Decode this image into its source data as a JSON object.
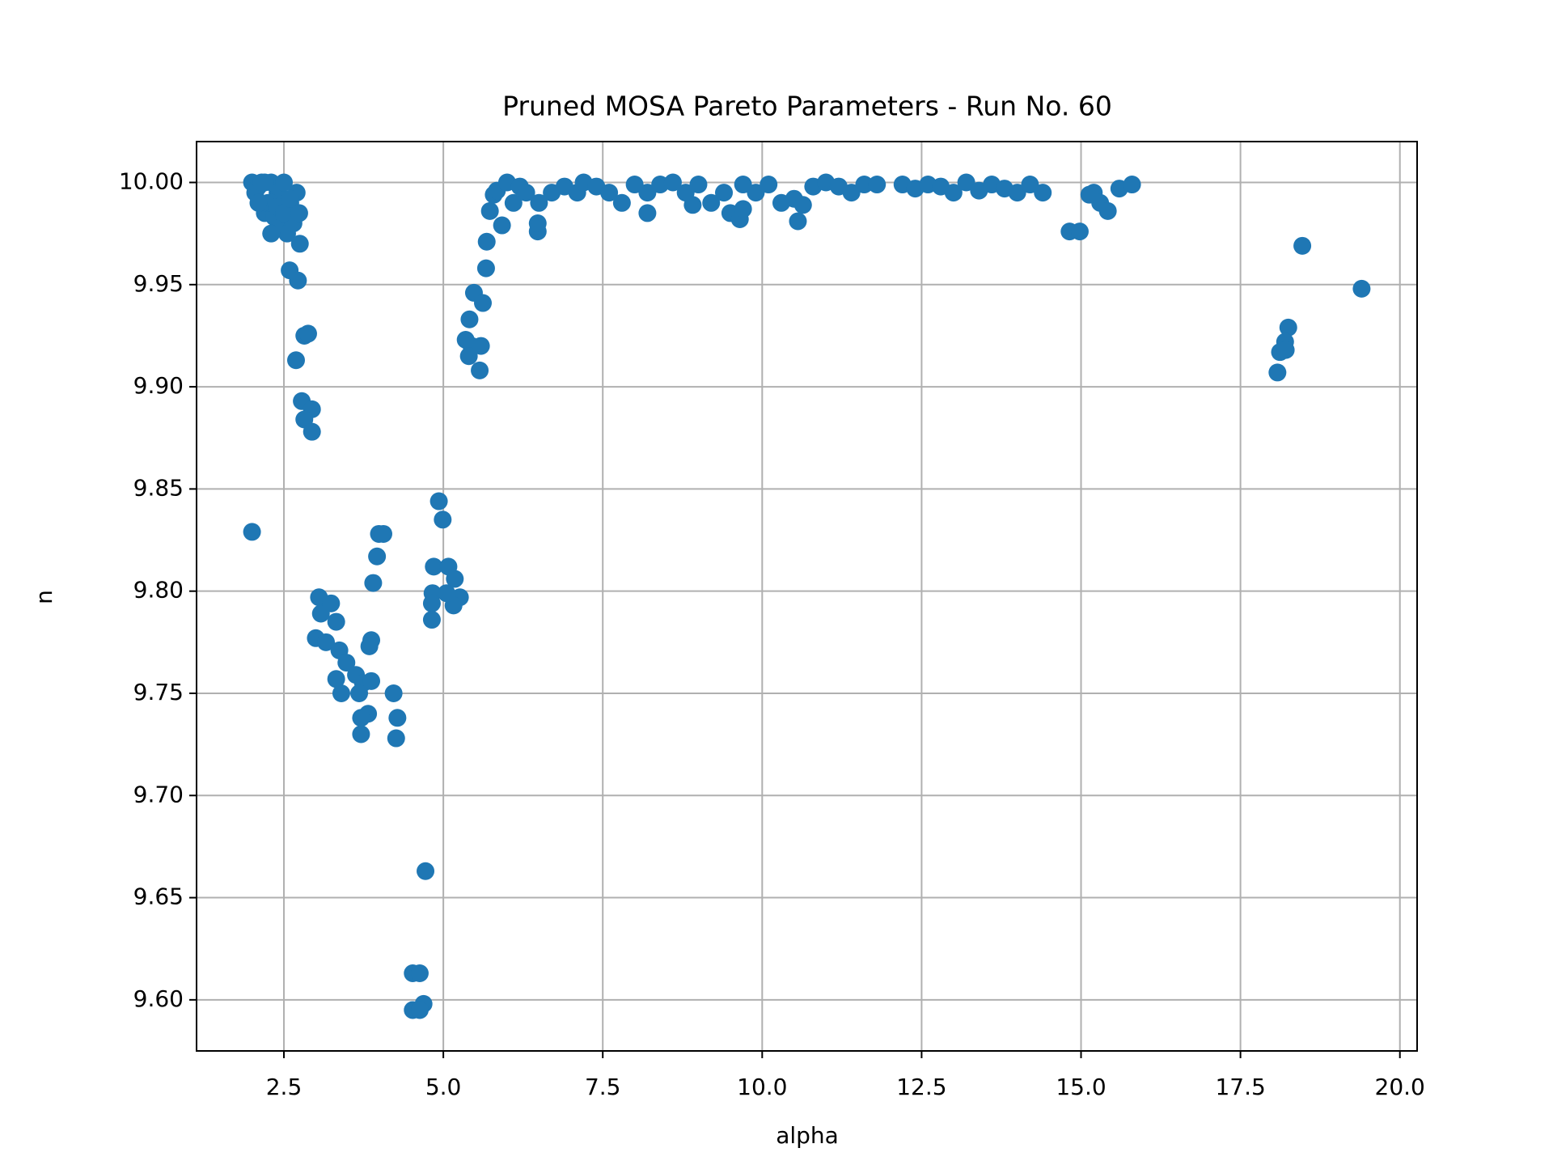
{
  "chart_data": {
    "type": "scatter",
    "title": "Pruned MOSA Pareto Parameters - Run No. 60",
    "xlabel": "alpha",
    "ylabel": "n",
    "color": "#1f77b4",
    "grid": true,
    "xlim": [
      1.13,
      20.27
    ],
    "xticks": [
      {
        "value": 2.5,
        "label": "2.5"
      },
      {
        "value": 5,
        "label": "5.0"
      },
      {
        "value": 7.5,
        "label": "7.5"
      },
      {
        "value": 10,
        "label": "10.0"
      },
      {
        "value": 12.5,
        "label": "12.5"
      },
      {
        "value": 15,
        "label": "15.0"
      },
      {
        "value": 17.5,
        "label": "17.5"
      },
      {
        "value": 20,
        "label": "20.0"
      }
    ],
    "ylim": [
      9.575,
      10.02
    ],
    "yticks": [
      {
        "value": 9.6,
        "label": "9.60"
      },
      {
        "value": 9.65,
        "label": "9.65"
      },
      {
        "value": 9.7,
        "label": "9.70"
      },
      {
        "value": 9.75,
        "label": "9.75"
      },
      {
        "value": 9.8,
        "label": "9.80"
      },
      {
        "value": 9.85,
        "label": "9.85"
      },
      {
        "value": 9.9,
        "label": "9.90"
      },
      {
        "value": 9.95,
        "label": "9.95"
      },
      {
        "value": 10,
        "label": "10.00"
      }
    ],
    "x": [
      2.0,
      2.05,
      2.1,
      2.15,
      2.2,
      2.25,
      2.3,
      2.35,
      2.4,
      2.45,
      2.5,
      2.55,
      2.6,
      2.65,
      2.7,
      2.3,
      2.2,
      2.4,
      2.5,
      2.6,
      2.1,
      2.3,
      2.0,
      2.59,
      2.72,
      2.69,
      2.82,
      2.88,
      2.78,
      2.94,
      2.82,
      2.94,
      2.75,
      2.74,
      3.05,
      3.08,
      3.24,
      3.0,
      3.16,
      3.32,
      3.37,
      3.48,
      3.32,
      3.4,
      3.63,
      3.74,
      3.87,
      3.68,
      3.71,
      3.82,
      3.71,
      3.87,
      3.84,
      3.9,
      3.96,
      3.99,
      4.06,
      4.22,
      4.28,
      4.26,
      4.72,
      4.52,
      4.63,
      4.52,
      4.69,
      4.63,
      4.93,
      4.99,
      4.85,
      5.08,
      5.18,
      4.83,
      5.26,
      4.82,
      5.16,
      4.82,
      5.05,
      5.35,
      5.44,
      5.4,
      5.41,
      5.48,
      5.59,
      5.62,
      5.57,
      5.67,
      5.68,
      5.73,
      5.79,
      5.92,
      5.84,
      6.0,
      6.1,
      6.2,
      6.3,
      6.5,
      6.7,
      6.9,
      7.1,
      7.2,
      7.4,
      7.6,
      7.8,
      8.0,
      8.2,
      8.4,
      8.6,
      8.8,
      9.0,
      9.2,
      9.4,
      9.5,
      9.7,
      9.9,
      10.1,
      10.3,
      10.5,
      10.8,
      11.0,
      11.2,
      11.4,
      11.6,
      11.8,
      12.2,
      12.4,
      12.6,
      12.8,
      13.0,
      13.2,
      13.4,
      13.6,
      13.8,
      14.0,
      14.2,
      14.4,
      15.6,
      15.8,
      15.2,
      15.3,
      6.48,
      6.48,
      8.2,
      8.91,
      9.65,
      10.56,
      9.7,
      10.64,
      14.82,
      14.98,
      15.42,
      15.13,
      18.47,
      18.25,
      18.2,
      18.12,
      18.08,
      19.4,
      18.21
    ],
    "y": [
      10.0,
      9.995,
      9.998,
      10.0,
      9.985,
      9.99,
      10.0,
      9.983,
      9.995,
      9.978,
      10.0,
      9.975,
      9.99,
      9.98,
      9.995,
      9.99,
      10.0,
      9.988,
      9.985,
      9.992,
      9.99,
      9.975,
      9.829,
      9.957,
      9.952,
      9.913,
      9.925,
      9.926,
      9.893,
      9.889,
      9.884,
      9.878,
      9.97,
      9.985,
      9.797,
      9.789,
      9.794,
      9.777,
      9.775,
      9.785,
      9.771,
      9.765,
      9.757,
      9.75,
      9.759,
      9.755,
      9.756,
      9.75,
      9.73,
      9.74,
      9.738,
      9.776,
      9.773,
      9.804,
      9.817,
      9.828,
      9.828,
      9.75,
      9.738,
      9.728,
      9.663,
      9.613,
      9.613,
      9.595,
      9.598,
      9.595,
      9.844,
      9.835,
      9.812,
      9.812,
      9.806,
      9.799,
      9.797,
      9.794,
      9.793,
      9.786,
      9.799,
      9.923,
      9.92,
      9.915,
      9.933,
      9.946,
      9.92,
      9.941,
      9.908,
      9.958,
      9.971,
      9.986,
      9.994,
      9.979,
      9.996,
      10.0,
      9.99,
      9.998,
      9.995,
      9.99,
      9.995,
      9.998,
      9.995,
      10.0,
      9.998,
      9.995,
      9.99,
      9.999,
      9.995,
      9.999,
      10.0,
      9.995,
      9.999,
      9.99,
      9.995,
      9.985,
      9.999,
      9.995,
      9.999,
      9.99,
      9.992,
      9.998,
      10.0,
      9.998,
      9.995,
      9.999,
      9.999,
      9.999,
      9.997,
      9.999,
      9.998,
      9.995,
      10.0,
      9.996,
      9.999,
      9.997,
      9.995,
      9.999,
      9.995,
      9.997,
      9.999,
      9.995,
      9.99,
      9.976,
      9.98,
      9.985,
      9.989,
      9.982,
      9.981,
      9.987,
      9.989,
      9.976,
      9.976,
      9.986,
      9.994,
      9.969,
      9.929,
      9.922,
      9.917,
      9.907,
      9.948,
      9.918
    ]
  }
}
